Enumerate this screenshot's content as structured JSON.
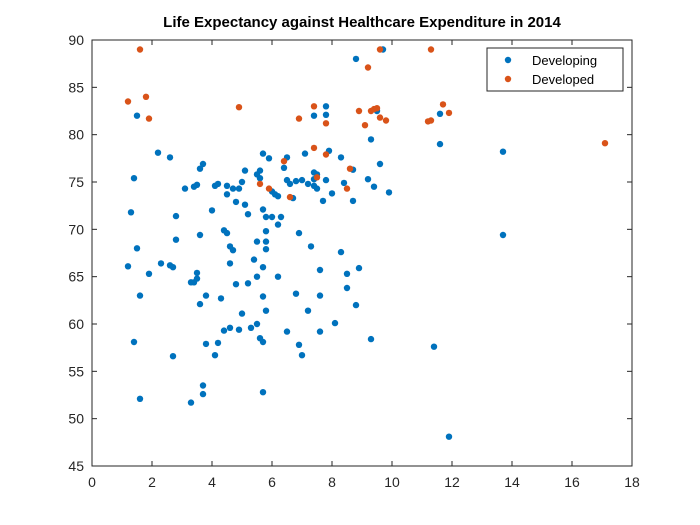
{
  "chart_data": {
    "type": "scatter",
    "title": "Life Expectancy against Healthcare Expenditure in 2014",
    "xlabel": "",
    "ylabel": "",
    "xlim": [
      0,
      18
    ],
    "ylim": [
      45,
      90
    ],
    "xticks": [
      0,
      2,
      4,
      6,
      8,
      10,
      12,
      14,
      16,
      18
    ],
    "yticks": [
      45,
      50,
      55,
      60,
      65,
      70,
      75,
      80,
      85,
      90
    ],
    "grid": false,
    "legend_position": "top-right",
    "series": [
      {
        "name": "Developing",
        "color": "#0072BD",
        "points": [
          [
            1.2,
            66.1
          ],
          [
            1.3,
            71.8
          ],
          [
            1.4,
            75.4
          ],
          [
            1.4,
            58.1
          ],
          [
            1.5,
            82.0
          ],
          [
            1.5,
            68.0
          ],
          [
            1.6,
            63.0
          ],
          [
            1.6,
            52.1
          ],
          [
            1.9,
            65.3
          ],
          [
            2.2,
            78.1
          ],
          [
            2.3,
            66.4
          ],
          [
            2.6,
            66.2
          ],
          [
            2.6,
            77.6
          ],
          [
            2.7,
            66.0
          ],
          [
            2.7,
            56.6
          ],
          [
            2.8,
            71.4
          ],
          [
            2.8,
            68.9
          ],
          [
            3.1,
            74.3
          ],
          [
            3.3,
            64.4
          ],
          [
            3.3,
            51.7
          ],
          [
            3.4,
            64.4
          ],
          [
            3.4,
            74.5
          ],
          [
            3.5,
            65.4
          ],
          [
            3.5,
            64.8
          ],
          [
            3.5,
            74.7
          ],
          [
            3.6,
            76.4
          ],
          [
            3.6,
            69.4
          ],
          [
            3.6,
            62.1
          ],
          [
            3.7,
            76.9
          ],
          [
            3.7,
            53.5
          ],
          [
            3.7,
            52.6
          ],
          [
            3.8,
            57.9
          ],
          [
            3.8,
            63.0
          ],
          [
            4.0,
            72.0
          ],
          [
            4.1,
            56.7
          ],
          [
            4.1,
            74.6
          ],
          [
            4.2,
            74.8
          ],
          [
            4.2,
            58.0
          ],
          [
            4.3,
            62.7
          ],
          [
            4.4,
            69.9
          ],
          [
            4.4,
            59.3
          ],
          [
            4.5,
            74.6
          ],
          [
            4.5,
            73.7
          ],
          [
            4.5,
            69.6
          ],
          [
            4.6,
            66.4
          ],
          [
            4.6,
            68.2
          ],
          [
            4.6,
            59.6
          ],
          [
            4.7,
            67.8
          ],
          [
            4.7,
            74.3
          ],
          [
            4.8,
            72.9
          ],
          [
            4.8,
            64.2
          ],
          [
            4.9,
            59.4
          ],
          [
            4.9,
            74.3
          ],
          [
            5.0,
            61.1
          ],
          [
            5.0,
            75.0
          ],
          [
            5.1,
            76.2
          ],
          [
            5.1,
            72.6
          ],
          [
            5.2,
            71.6
          ],
          [
            5.2,
            64.3
          ],
          [
            5.3,
            59.6
          ],
          [
            5.4,
            66.8
          ],
          [
            5.5,
            75.8
          ],
          [
            5.5,
            65.0
          ],
          [
            5.5,
            68.7
          ],
          [
            5.5,
            60.0
          ],
          [
            5.6,
            76.2
          ],
          [
            5.6,
            75.4
          ],
          [
            5.6,
            58.5
          ],
          [
            5.7,
            78.0
          ],
          [
            5.7,
            72.1
          ],
          [
            5.7,
            66.0
          ],
          [
            5.7,
            62.9
          ],
          [
            5.7,
            58.1
          ],
          [
            5.7,
            52.8
          ],
          [
            5.8,
            71.3
          ],
          [
            5.8,
            69.8
          ],
          [
            5.8,
            67.9
          ],
          [
            5.8,
            61.4
          ],
          [
            5.8,
            68.7
          ],
          [
            5.9,
            77.5
          ],
          [
            6.0,
            74.0
          ],
          [
            6.0,
            71.3
          ],
          [
            6.1,
            73.7
          ],
          [
            6.2,
            73.5
          ],
          [
            6.2,
            70.5
          ],
          [
            6.2,
            65.0
          ],
          [
            6.3,
            71.3
          ],
          [
            6.4,
            76.5
          ],
          [
            6.5,
            77.6
          ],
          [
            6.5,
            75.2
          ],
          [
            6.5,
            59.2
          ],
          [
            6.6,
            74.8
          ],
          [
            6.7,
            73.3
          ],
          [
            6.8,
            75.1
          ],
          [
            6.8,
            63.2
          ],
          [
            6.9,
            69.6
          ],
          [
            6.9,
            57.8
          ],
          [
            7.0,
            56.7
          ],
          [
            7.0,
            75.2
          ],
          [
            7.1,
            78.0
          ],
          [
            7.2,
            74.8
          ],
          [
            7.2,
            61.4
          ],
          [
            7.3,
            68.2
          ],
          [
            7.4,
            82.0
          ],
          [
            7.4,
            76.0
          ],
          [
            7.4,
            74.6
          ],
          [
            7.4,
            75.3
          ],
          [
            7.5,
            75.8
          ],
          [
            7.5,
            74.3
          ],
          [
            7.6,
            65.7
          ],
          [
            7.6,
            63.0
          ],
          [
            7.6,
            59.2
          ],
          [
            7.7,
            73.0
          ],
          [
            7.8,
            83.0
          ],
          [
            7.8,
            82.1
          ],
          [
            7.8,
            75.2
          ],
          [
            7.9,
            78.3
          ],
          [
            8.0,
            73.8
          ],
          [
            8.1,
            60.1
          ],
          [
            8.3,
            77.6
          ],
          [
            8.3,
            67.6
          ],
          [
            8.4,
            74.9
          ],
          [
            8.5,
            63.8
          ],
          [
            8.5,
            65.3
          ],
          [
            8.7,
            73.0
          ],
          [
            8.7,
            76.3
          ],
          [
            8.8,
            62.0
          ],
          [
            8.8,
            88.0
          ],
          [
            8.9,
            65.9
          ],
          [
            9.2,
            75.3
          ],
          [
            9.3,
            79.5
          ],
          [
            9.3,
            58.4
          ],
          [
            9.4,
            74.5
          ],
          [
            9.5,
            82.5
          ],
          [
            9.6,
            76.9
          ],
          [
            9.7,
            89.0
          ],
          [
            9.9,
            73.9
          ],
          [
            11.4,
            57.6
          ],
          [
            11.6,
            82.2
          ],
          [
            11.6,
            79.0
          ],
          [
            11.9,
            48.1
          ],
          [
            13.7,
            78.2
          ],
          [
            13.7,
            69.4
          ]
        ]
      },
      {
        "name": "Developed",
        "color": "#D95319",
        "points": [
          [
            1.2,
            83.5
          ],
          [
            1.6,
            89.0
          ],
          [
            1.8,
            84.0
          ],
          [
            1.9,
            81.7
          ],
          [
            4.9,
            82.9
          ],
          [
            5.6,
            74.8
          ],
          [
            5.9,
            74.3
          ],
          [
            6.4,
            77.2
          ],
          [
            6.6,
            73.4
          ],
          [
            6.9,
            81.7
          ],
          [
            7.4,
            83.0
          ],
          [
            7.4,
            78.6
          ],
          [
            7.5,
            75.5
          ],
          [
            7.8,
            77.9
          ],
          [
            7.8,
            81.2
          ],
          [
            8.5,
            74.3
          ],
          [
            8.6,
            76.4
          ],
          [
            8.9,
            82.5
          ],
          [
            9.1,
            81.0
          ],
          [
            9.2,
            87.1
          ],
          [
            9.3,
            82.5
          ],
          [
            9.4,
            82.7
          ],
          [
            9.5,
            82.8
          ],
          [
            9.6,
            89.0
          ],
          [
            9.6,
            81.8
          ],
          [
            9.8,
            81.5
          ],
          [
            11.2,
            81.4
          ],
          [
            11.3,
            89.0
          ],
          [
            11.3,
            81.5
          ],
          [
            11.7,
            83.2
          ],
          [
            11.9,
            82.3
          ],
          [
            17.1,
            79.1
          ]
        ]
      }
    ]
  }
}
